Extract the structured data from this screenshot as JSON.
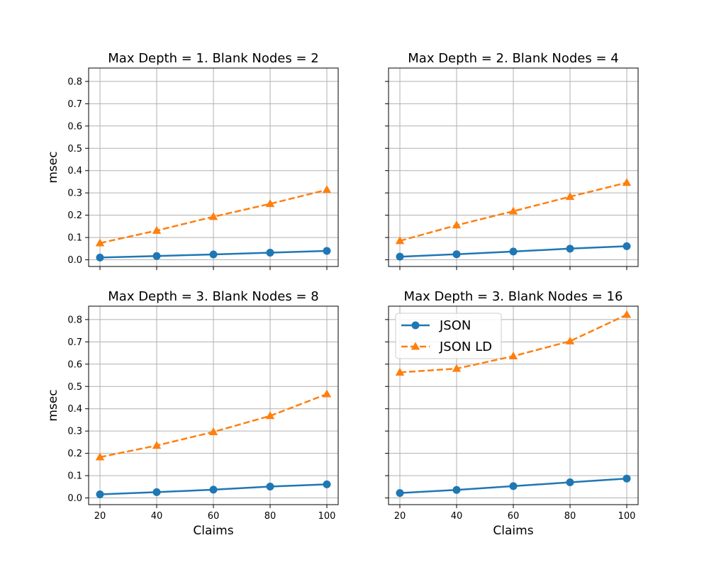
{
  "chart_data": [
    {
      "type": "line",
      "title": "Max Depth = 1. Blank Nodes = 2",
      "xlabel": "",
      "ylabel": "msec",
      "x": [
        20,
        40,
        60,
        80,
        100
      ],
      "series": [
        {
          "name": "JSON",
          "values": [
            0.01,
            0.017,
            0.024,
            0.032,
            0.04
          ]
        },
        {
          "name": "JSON LD",
          "values": [
            0.075,
            0.131,
            0.193,
            0.251,
            0.314
          ]
        }
      ],
      "xlim": [
        16,
        104
      ],
      "ylim": [
        -0.03,
        0.86
      ],
      "xticks": [
        20,
        40,
        60,
        80,
        100
      ],
      "yticks": [
        "0.0",
        "0.1",
        "0.2",
        "0.3",
        "0.4",
        "0.5",
        "0.6",
        "0.7",
        "0.8"
      ],
      "show_xtick_labels": false,
      "show_ytick_labels": true,
      "grid": true,
      "legend": false
    },
    {
      "type": "line",
      "title": "Max Depth = 2. Blank Nodes = 4",
      "xlabel": "",
      "ylabel": "",
      "x": [
        20,
        40,
        60,
        80,
        100
      ],
      "series": [
        {
          "name": "JSON",
          "values": [
            0.014,
            0.025,
            0.037,
            0.05,
            0.061
          ]
        },
        {
          "name": "JSON LD",
          "values": [
            0.085,
            0.155,
            0.218,
            0.283,
            0.346
          ]
        }
      ],
      "xlim": [
        16,
        104
      ],
      "ylim": [
        -0.03,
        0.86
      ],
      "xticks": [
        20,
        40,
        60,
        80,
        100
      ],
      "yticks": [
        "0.0",
        "0.1",
        "0.2",
        "0.3",
        "0.4",
        "0.5",
        "0.6",
        "0.7",
        "0.8"
      ],
      "show_xtick_labels": false,
      "show_ytick_labels": false,
      "grid": true,
      "legend": false
    },
    {
      "type": "line",
      "title": "Max Depth = 3. Blank Nodes = 8",
      "xlabel": "Claims",
      "ylabel": "msec",
      "x": [
        20,
        40,
        60,
        80,
        100
      ],
      "series": [
        {
          "name": "JSON",
          "values": [
            0.016,
            0.026,
            0.037,
            0.051,
            0.061
          ]
        },
        {
          "name": "JSON LD",
          "values": [
            0.183,
            0.235,
            0.296,
            0.368,
            0.466
          ]
        }
      ],
      "xlim": [
        16,
        104
      ],
      "ylim": [
        -0.03,
        0.86
      ],
      "xticks": [
        20,
        40,
        60,
        80,
        100
      ],
      "yticks": [
        "0.0",
        "0.1",
        "0.2",
        "0.3",
        "0.4",
        "0.5",
        "0.6",
        "0.7",
        "0.8"
      ],
      "show_xtick_labels": true,
      "show_ytick_labels": true,
      "grid": true,
      "legend": false
    },
    {
      "type": "line",
      "title": "Max Depth = 3. Blank Nodes = 16",
      "xlabel": "Claims",
      "ylabel": "",
      "x": [
        20,
        40,
        60,
        80,
        100
      ],
      "series": [
        {
          "name": "JSON",
          "values": [
            0.022,
            0.036,
            0.053,
            0.07,
            0.087
          ]
        },
        {
          "name": "JSON LD",
          "values": [
            0.563,
            0.58,
            0.636,
            0.703,
            0.822
          ]
        }
      ],
      "xlim": [
        16,
        104
      ],
      "ylim": [
        -0.03,
        0.86
      ],
      "xticks": [
        20,
        40,
        60,
        80,
        100
      ],
      "yticks": [
        "0.0",
        "0.1",
        "0.2",
        "0.3",
        "0.4",
        "0.5",
        "0.6",
        "0.7",
        "0.8"
      ],
      "show_xtick_labels": true,
      "show_ytick_labels": false,
      "grid": true,
      "legend": true,
      "legend_position": "upper-left"
    }
  ],
  "series_styles": [
    {
      "name": "JSON",
      "color": "#1f77b4",
      "marker": "circle",
      "line": "solid"
    },
    {
      "name": "JSON LD",
      "color": "#ff7f0e",
      "marker": "triangle",
      "line": "dashed"
    }
  ],
  "legend_items": [
    "JSON",
    "JSON LD"
  ]
}
